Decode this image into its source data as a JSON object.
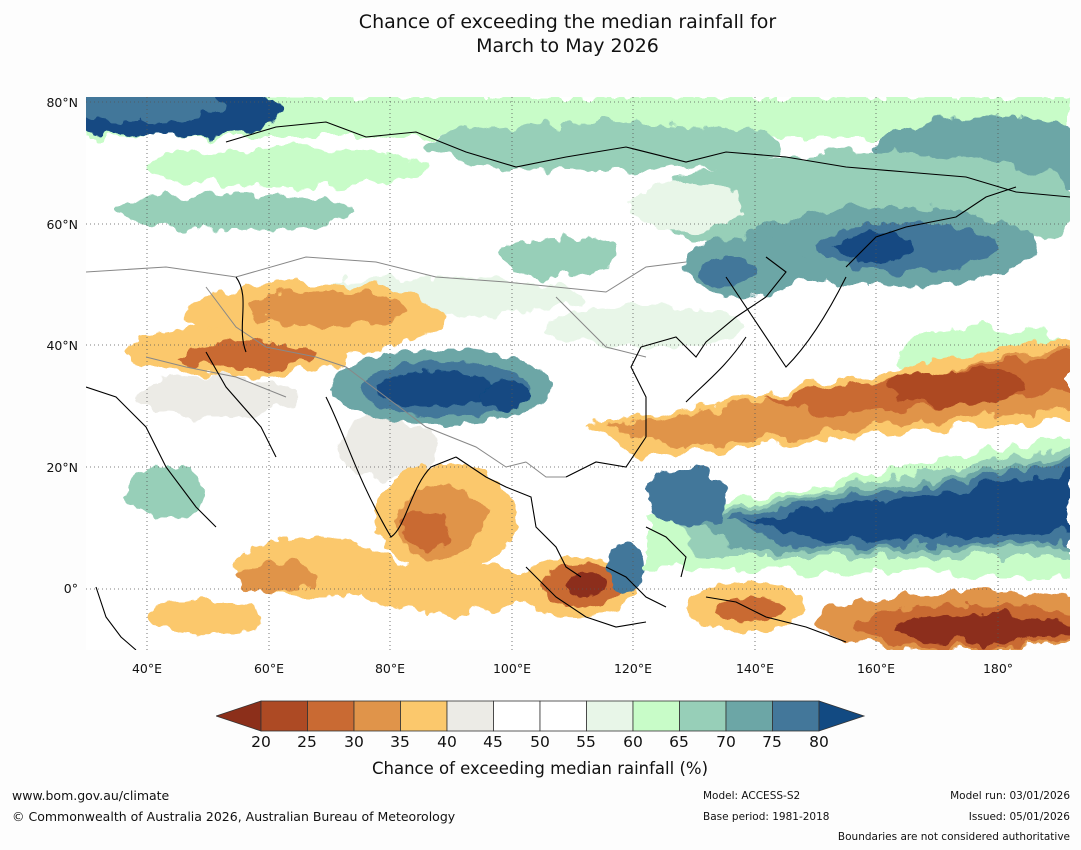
{
  "title": {
    "line1": "Chance of exceeding the median rainfall for",
    "line2": "March to May 2026"
  },
  "map": {
    "latitude_labels": [
      "80°N",
      "60°N",
      "40°N",
      "20°N",
      "0°"
    ],
    "longitude_labels": [
      "40°E",
      "60°E",
      "80°E",
      "100°E",
      "120°E",
      "140°E",
      "160°E",
      "180°"
    ],
    "lon_range_deg": [
      30,
      192
    ],
    "lat_range_deg": [
      -10,
      80
    ]
  },
  "colorbar": {
    "label": "Chance of exceeding median rainfall (%)",
    "ticks": [
      "20",
      "25",
      "30",
      "35",
      "40",
      "45",
      "50",
      "55",
      "60",
      "65",
      "70",
      "75",
      "80"
    ],
    "colors": [
      "#8c2f1a",
      "#ad4a24",
      "#c96a33",
      "#e0944a",
      "#fbc86c",
      "#ecebe6",
      "#ffffff",
      "#ffffff",
      "#e8f6e8",
      "#c8fcc8",
      "#97cfb8",
      "#6ca6a6",
      "#43779a",
      "#124a82"
    ]
  },
  "footer": {
    "website": "www.bom.gov.au/climate",
    "copyright": "© Commonwealth of Australia 2026, Australian Bureau of Meteorology",
    "model": "Model: ACCESS-S2",
    "base_period": "Base period: 1981-2018",
    "model_run": "Model run: 03/01/2026",
    "issued": "Issued: 05/01/2026",
    "disclaimer": "Boundaries are not considered authoritative"
  }
}
